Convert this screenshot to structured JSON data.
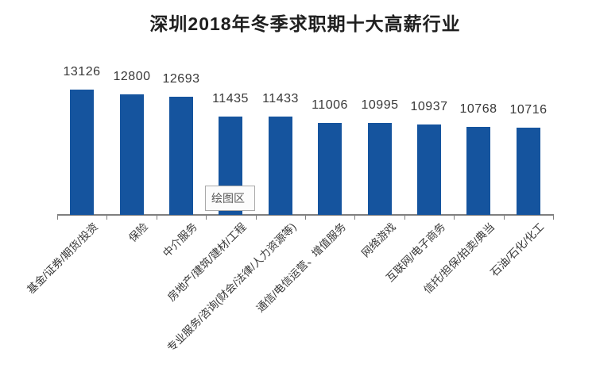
{
  "chart_data": {
    "type": "bar",
    "title": "深圳2018年冬季求职期十大高薪行业",
    "categories": [
      "基金/证券/期货/投资",
      "保险",
      "中介服务",
      "房地产/建筑/建材/工程",
      "专业服务/咨询(财会/法律/人力资源等)",
      "通信/电信运营、增值服务",
      "网络游戏",
      "互联网/电子商务",
      "信托/担保/拍卖/典当",
      "石油/石化/化工"
    ],
    "values": [
      13126,
      12800,
      12693,
      11435,
      11433,
      11006,
      10995,
      10937,
      10768,
      10716
    ],
    "data_labels_visible": true,
    "xlabel": "",
    "ylabel": "",
    "axis_min": 5200,
    "axis_max": 13500,
    "grid": false,
    "legend_position": "none",
    "category_label_rotation_deg": 45,
    "bar_color": "#15549e",
    "axis_color": "#7f7f7f",
    "text_color": "#383838",
    "title_color": "#1f1f1f"
  },
  "overlay": {
    "tooltip_label": "绘图区",
    "tooltip_bg": "#fcfcfc",
    "tooltip_border": "#a9a9a9",
    "tooltip_text_color": "#595959"
  }
}
